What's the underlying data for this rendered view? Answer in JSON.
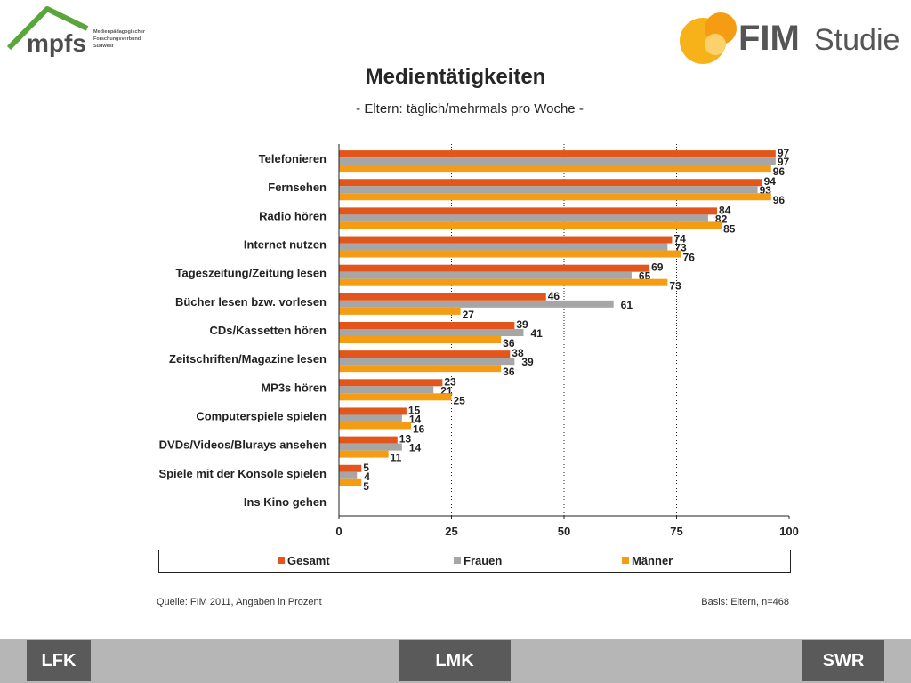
{
  "header": {
    "mpfs_logo_text": "mpfs",
    "mpfs_sub_lines": [
      "Medienpädagogischer",
      "Forschungsverbund",
      "Südwest"
    ],
    "fim_logo_text_1": "FIM",
    "fim_logo_text_2": "Studie"
  },
  "chart_data": {
    "type": "bar",
    "orientation": "horizontal",
    "title": "Medientätigkeiten",
    "subtitle": "- Eltern: täglich/mehrmals pro Woche -",
    "categories": [
      "Telefonieren",
      "Fernsehen",
      "Radio hören",
      "Internet nutzen",
      "Tageszeitung/Zeitung lesen",
      "Bücher lesen bzw. vorlesen",
      "CDs/Kassetten  hören",
      "Zeitschriften/Magazine  lesen",
      "MP3s hören",
      "Computerspiele  spielen",
      "DVDs/Videos/Blurays  ansehen",
      "Spiele mit der Konsole spielen",
      "Ins Kino gehen"
    ],
    "series": [
      {
        "name": "Gesamt",
        "color": "#e2561b",
        "values": [
          97,
          94,
          84,
          74,
          69,
          46,
          39,
          38,
          23,
          15,
          13,
          5,
          0
        ]
      },
      {
        "name": "Frauen",
        "color": "#a6a6a6",
        "values": [
          97,
          93,
          82,
          73,
          65,
          61,
          41,
          39,
          21,
          14,
          14,
          4,
          0
        ]
      },
      {
        "name": "Männer",
        "color": "#f59c12",
        "values": [
          96,
          96,
          85,
          76,
          73,
          27,
          36,
          36,
          25,
          16,
          11,
          5,
          0
        ]
      }
    ],
    "xlim": [
      0,
      100
    ],
    "xticks": [
      0,
      25,
      50,
      75,
      100
    ],
    "grid": "vertical dotted at 25, 50, 75",
    "legend": "bottom"
  },
  "source": "Quelle: FIM 2011, Angaben in Prozent",
  "basis": "Basis: Eltern, n=468",
  "footer": {
    "lfk": "LFK",
    "lmk": "LMK",
    "swr": "SWR"
  }
}
